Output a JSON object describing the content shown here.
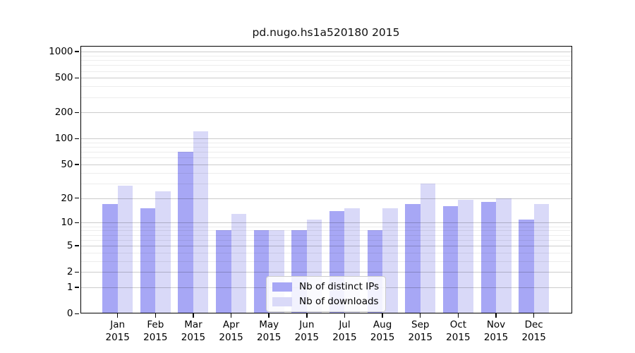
{
  "chart_data": {
    "type": "bar",
    "title": "pd.nugo.hs1a520180 2015",
    "categories": [
      "Jan",
      "Feb",
      "Mar",
      "Apr",
      "May",
      "Jun",
      "Jul",
      "Aug",
      "Sep",
      "Oct",
      "Nov",
      "Dec"
    ],
    "year_label": "2015",
    "series": [
      {
        "name": "Nb of distinct IPs",
        "color": "#a7a7f5",
        "values": [
          17,
          15,
          70,
          8,
          8,
          8,
          14,
          8,
          17,
          16,
          18,
          11
        ]
      },
      {
        "name": "Nb of downloads",
        "color": "#d9d9f8",
        "values": [
          28,
          24,
          122,
          13,
          8,
          11,
          15,
          15,
          30,
          19,
          20,
          17
        ]
      }
    ],
    "yscale": "log1p",
    "yticks": [
      0,
      1,
      2,
      5,
      10,
      20,
      50,
      100,
      200,
      500,
      1000
    ],
    "minor_gridlines": [
      3,
      4,
      6,
      7,
      8,
      9,
      30,
      40,
      60,
      70,
      80,
      90,
      300,
      400,
      600,
      700,
      800,
      900
    ],
    "ylim": [
      0,
      1186
    ],
    "grid": true,
    "legend_position": "lower center",
    "spine_color": "#000000",
    "background_color": "#ffffff"
  }
}
